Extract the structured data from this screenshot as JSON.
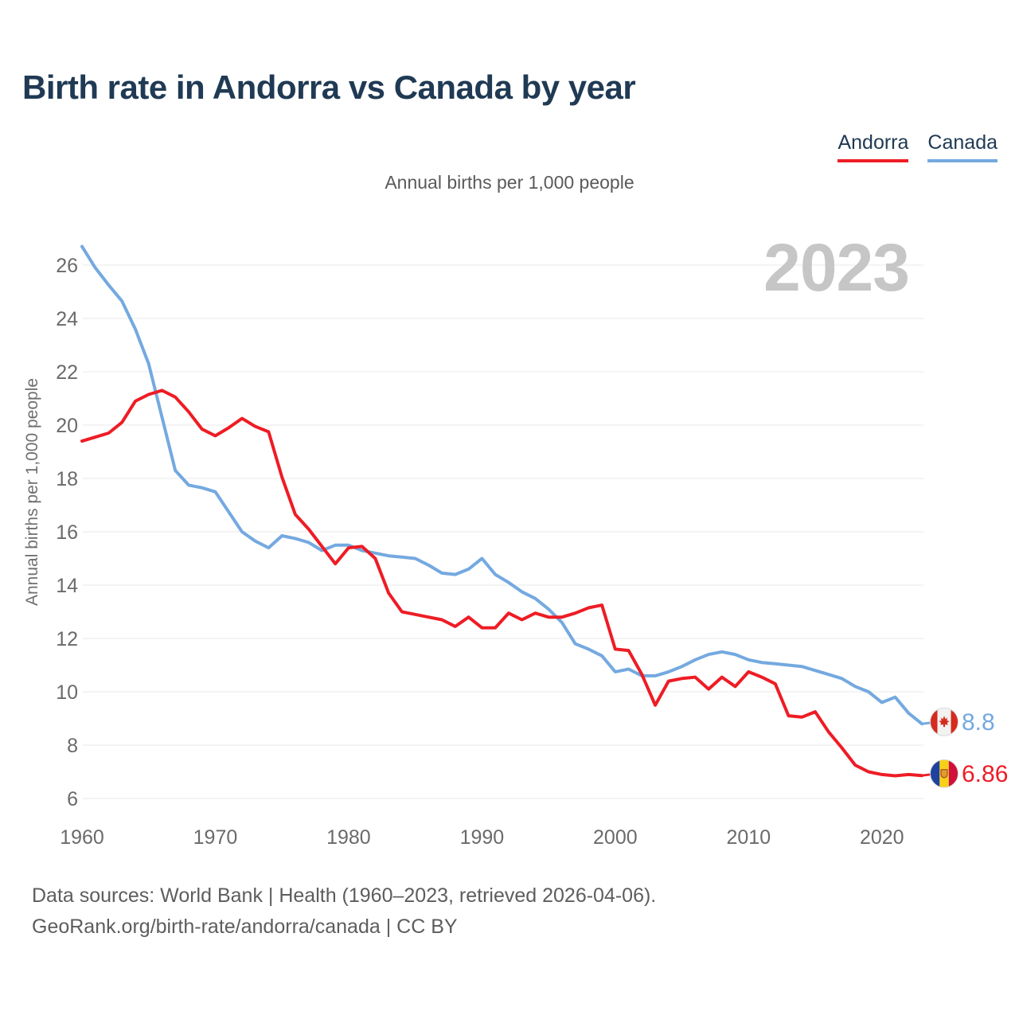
{
  "header": {
    "title": "Birth rate in Andorra vs Canada by year",
    "subtitle": "Annual births per 1,000 people"
  },
  "legend": [
    {
      "label": "Andorra",
      "color": "#ee1c25"
    },
    {
      "label": "Canada",
      "color": "#74a9e0"
    }
  ],
  "watermark": "2023",
  "y_axis": {
    "label": "Annual births per 1,000 people",
    "ticks": [
      26,
      24,
      22,
      20,
      18,
      16,
      14,
      12,
      10,
      8,
      6
    ]
  },
  "x_axis": {
    "ticks": [
      1960,
      1970,
      1980,
      1990,
      2000,
      2010,
      2020
    ]
  },
  "end_labels": [
    {
      "series": "Canada",
      "value": "8.8",
      "flag": "canada",
      "color": "#74a9e0"
    },
    {
      "series": "Andorra",
      "value": "6.86",
      "flag": "andorra",
      "color": "#ee1c25"
    }
  ],
  "footer": {
    "line1": "Data sources: World Bank | Health (1960–2023, retrieved 2026-04-06).",
    "line2": "GeoRank.org/birth-rate/andorra/canada | CC BY"
  },
  "chart_data": {
    "type": "line",
    "title": "Birth rate in Andorra vs Canada by year",
    "ylabel": "Annual births per 1,000 people",
    "xlabel": "",
    "xlim": [
      1960,
      2023
    ],
    "ylim": [
      5.5,
      27
    ],
    "grid": "horizontal",
    "legend_position": "top-right",
    "x": [
      1960,
      1961,
      1962,
      1963,
      1964,
      1965,
      1966,
      1967,
      1968,
      1969,
      1970,
      1971,
      1972,
      1973,
      1974,
      1975,
      1976,
      1977,
      1978,
      1979,
      1980,
      1981,
      1982,
      1983,
      1984,
      1985,
      1986,
      1987,
      1988,
      1989,
      1990,
      1991,
      1992,
      1993,
      1994,
      1995,
      1996,
      1997,
      1998,
      1999,
      2000,
      2001,
      2002,
      2003,
      2004,
      2005,
      2006,
      2007,
      2008,
      2009,
      2010,
      2011,
      2012,
      2013,
      2014,
      2015,
      2016,
      2017,
      2018,
      2019,
      2020,
      2021,
      2022,
      2023
    ],
    "series": [
      {
        "name": "Andorra",
        "color": "#ee1c25",
        "final_value": 6.86,
        "values": [
          19.4,
          19.55,
          19.7,
          20.1,
          20.9,
          21.15,
          21.3,
          21.05,
          20.5,
          19.85,
          19.6,
          19.9,
          20.25,
          19.95,
          19.75,
          18.05,
          16.65,
          16.1,
          15.45,
          14.8,
          15.4,
          15.45,
          15.0,
          13.7,
          13.0,
          12.9,
          12.8,
          12.7,
          12.45,
          12.8,
          12.4,
          12.4,
          12.95,
          12.7,
          12.95,
          12.8,
          12.8,
          12.95,
          13.15,
          13.25,
          11.6,
          11.55,
          10.65,
          9.5,
          10.4,
          10.5,
          10.55,
          10.1,
          10.55,
          10.2,
          10.75,
          10.55,
          10.3,
          9.1,
          9.05,
          9.25,
          8.5,
          7.9,
          7.25,
          7.0,
          6.9,
          6.85,
          6.9,
          6.86
        ]
      },
      {
        "name": "Canada",
        "color": "#74a9e0",
        "final_value": 8.8,
        "values": [
          26.7,
          25.9,
          25.25,
          24.65,
          23.6,
          22.3,
          20.3,
          18.3,
          17.75,
          17.65,
          17.5,
          16.75,
          16.0,
          15.65,
          15.4,
          15.85,
          15.75,
          15.6,
          15.3,
          15.5,
          15.5,
          15.3,
          15.2,
          15.1,
          15.05,
          15.0,
          14.75,
          14.45,
          14.4,
          14.6,
          15.0,
          14.4,
          14.1,
          13.75,
          13.5,
          13.1,
          12.6,
          11.8,
          11.6,
          11.35,
          10.75,
          10.85,
          10.6,
          10.6,
          10.75,
          10.95,
          11.2,
          11.4,
          11.5,
          11.4,
          11.2,
          11.1,
          11.05,
          11.0,
          10.95,
          10.8,
          10.65,
          10.5,
          10.2,
          10.0,
          9.6,
          9.8,
          9.2,
          8.8
        ]
      }
    ]
  }
}
